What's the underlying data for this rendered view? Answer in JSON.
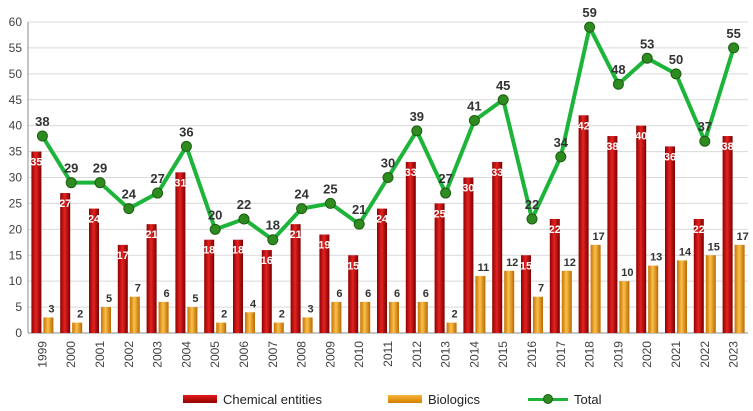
{
  "chart_data": {
    "type": "bar",
    "categories": [
      "1999",
      "2000",
      "2001",
      "2002",
      "2003",
      "2004",
      "2005",
      "2006",
      "2007",
      "2008",
      "2009",
      "2010",
      "2011",
      "2012",
      "2013",
      "2014",
      "2015",
      "2016",
      "2017",
      "2018",
      "2019",
      "2020",
      "2021",
      "2022",
      "2023"
    ],
    "series": [
      {
        "name": "Chemical entities",
        "type": "bar",
        "color": "#c00000",
        "values": [
          35,
          27,
          24,
          17,
          21,
          31,
          18,
          18,
          16,
          21,
          19,
          15,
          24,
          33,
          25,
          30,
          33,
          15,
          22,
          42,
          38,
          40,
          36,
          22,
          38
        ]
      },
      {
        "name": "Biologics",
        "type": "bar",
        "color": "#e8960c",
        "values": [
          3,
          2,
          5,
          7,
          6,
          5,
          2,
          4,
          2,
          3,
          6,
          6,
          6,
          6,
          2,
          11,
          12,
          7,
          12,
          17,
          10,
          13,
          14,
          15,
          17
        ]
      },
      {
        "name": "Total",
        "type": "line",
        "color": "#1db43a",
        "marker_color": "#2e8b1f",
        "values": [
          38,
          29,
          29,
          24,
          27,
          36,
          20,
          22,
          18,
          24,
          25,
          21,
          30,
          39,
          27,
          41,
          45,
          22,
          34,
          59,
          48,
          53,
          50,
          37,
          55
        ]
      }
    ],
    "ylim": [
      0,
      60
    ],
    "yticks": [
      0,
      5,
      10,
      15,
      20,
      25,
      30,
      35,
      40,
      45,
      50,
      55,
      60
    ],
    "grid": true,
    "legend_position": "bottom"
  },
  "legend": {
    "chemical": "Chemical entities",
    "biologics": "Biologics",
    "total": "Total"
  }
}
